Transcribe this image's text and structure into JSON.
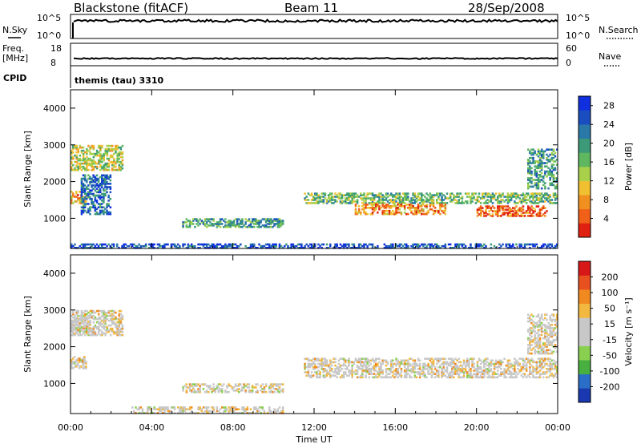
{
  "header": {
    "station": "Blackstone (fitACF)",
    "beam": "Beam 11",
    "date": "28/Sep/2008"
  },
  "panels": {
    "nsky_label": "N.Sky",
    "nsky_ticks": [
      "10^5",
      "10^0"
    ],
    "nsearch_label": "N.Search",
    "freq_label": "Freq.",
    "freq_unit": "[MHz]",
    "freq_ticks": [
      "18",
      "8"
    ],
    "nave_label": "Nave",
    "nave_ticks": [
      "60",
      "0"
    ],
    "cpid_label": "CPID",
    "cpid_value": "themis (tau) 3310"
  },
  "colors": {
    "power_scale": [
      "#1030e0",
      "#1a4ec0",
      "#2a78a8",
      "#3c9a78",
      "#5fb860",
      "#a8d04a",
      "#f0c030",
      "#f09020",
      "#f06018",
      "#e02010"
    ],
    "velocity_scale": [
      "#d81818",
      "#e85020",
      "#f08a20",
      "#f2b840",
      "#c8c8c8",
      "#c8c8c8",
      "#8ad050",
      "#48b040",
      "#2a6ec8",
      "#1a38b0"
    ]
  },
  "chart_data": [
    {
      "type": "heatmap",
      "name": "power",
      "ylabel": "Slant Range [km]",
      "xlabel": "Time UT",
      "x_ticks": [
        "00:00",
        "04:00",
        "08:00",
        "12:00",
        "16:00",
        "20:00",
        "00:00"
      ],
      "xlim_hours": [
        0,
        24
      ],
      "ylim_km": [
        180,
        4500
      ],
      "y_ticks": [
        1000,
        2000,
        3000,
        4000
      ],
      "colorbar_label": "Power [dB]",
      "colorbar_ticks": [
        "4",
        "8",
        "12",
        "16",
        "20",
        "24",
        "28"
      ],
      "colorbar_range": [
        0,
        30
      ],
      "regions": [
        {
          "t0": 0.0,
          "t1": 2.6,
          "r0": 2300,
          "r1": 3000,
          "level": 0.55
        },
        {
          "t0": 0.0,
          "t1": 0.8,
          "r0": 1400,
          "r1": 1750,
          "level": 0.75
        },
        {
          "t0": 0.5,
          "t1": 2.0,
          "r0": 1100,
          "r1": 2200,
          "level": 0.2
        },
        {
          "t0": 5.5,
          "t1": 10.5,
          "r0": 750,
          "r1": 1000,
          "level": 0.35
        },
        {
          "t0": 11.5,
          "t1": 24.0,
          "r0": 1400,
          "r1": 1700,
          "level": 0.45
        },
        {
          "t0": 14.0,
          "t1": 18.5,
          "r0": 1100,
          "r1": 1400,
          "level": 0.8
        },
        {
          "t0": 20.0,
          "t1": 23.5,
          "r0": 1050,
          "r1": 1350,
          "level": 0.9
        },
        {
          "t0": 0.0,
          "t1": 24.0,
          "r0": 180,
          "r1": 320,
          "level": 0.1
        },
        {
          "t0": 22.5,
          "t1": 24.0,
          "r0": 1800,
          "r1": 2900,
          "level": 0.35
        }
      ]
    },
    {
      "type": "heatmap",
      "name": "velocity",
      "ylabel": "Slant Range [km]",
      "xlabel": "Time UT",
      "x_ticks": [
        "00:00",
        "04:00",
        "08:00",
        "12:00",
        "16:00",
        "20:00",
        "00:00"
      ],
      "xlim_hours": [
        0,
        24
      ],
      "ylim_km": [
        180,
        4500
      ],
      "y_ticks": [
        1000,
        2000,
        3000,
        4000
      ],
      "colorbar_label": "Velocity [m s⁻¹]",
      "colorbar_ticks": [
        "200",
        "100",
        "50",
        "15",
        "-15",
        "-50",
        "-100",
        "-200"
      ],
      "regions": [
        {
          "t0": 0.0,
          "t1": 2.6,
          "r0": 2300,
          "r1": 3000,
          "level": 0.5
        },
        {
          "t0": 0.0,
          "t1": 0.8,
          "r0": 1400,
          "r1": 1750,
          "level": 0.5
        },
        {
          "t0": 0.0,
          "t1": 1.0,
          "r0": 2400,
          "r1": 2800,
          "level": 0.3
        },
        {
          "t0": 5.5,
          "t1": 10.5,
          "r0": 750,
          "r1": 1000,
          "level": 0.6
        },
        {
          "t0": 3.0,
          "t1": 10.5,
          "r0": 180,
          "r1": 380,
          "level": 0.3
        },
        {
          "t0": 11.5,
          "t1": 24.0,
          "r0": 1150,
          "r1": 1700,
          "level": 0.5
        },
        {
          "t0": 22.5,
          "t1": 24.0,
          "r0": 1800,
          "r1": 2900,
          "level": 0.5
        }
      ]
    }
  ]
}
